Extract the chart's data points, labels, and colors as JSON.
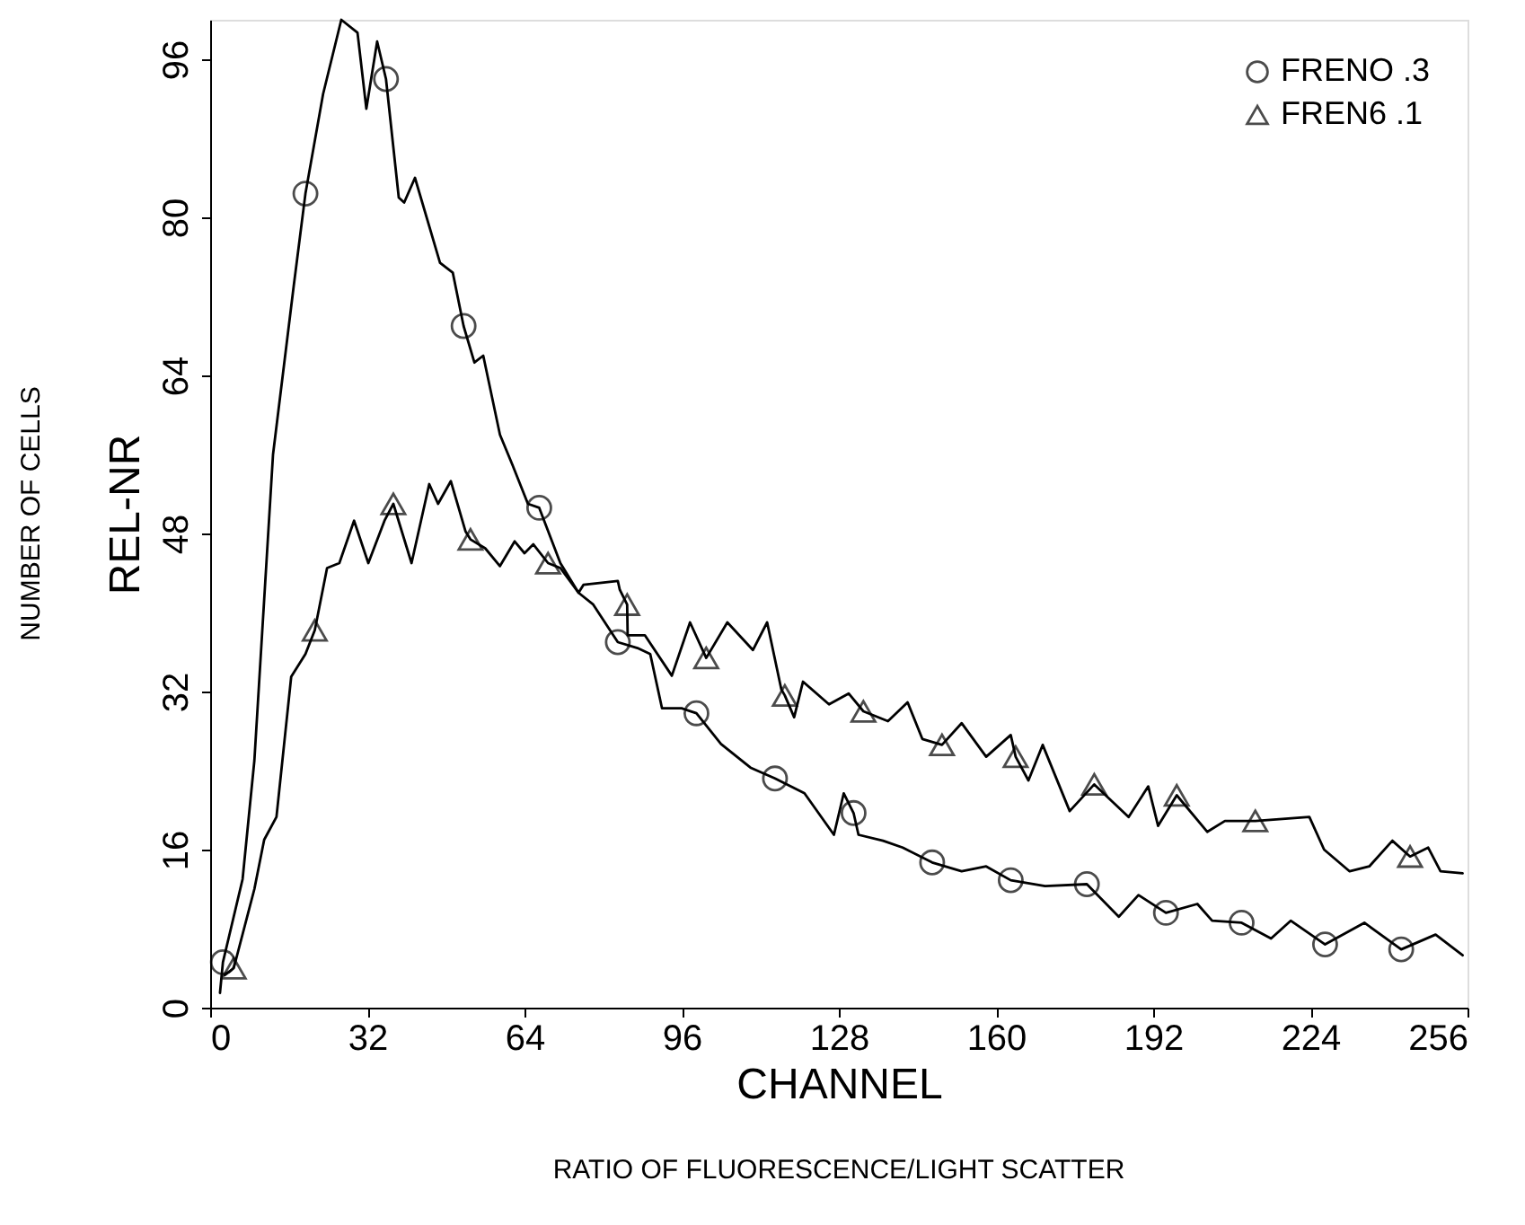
{
  "chart_data": {
    "type": "line",
    "xlabel": "CHANNEL",
    "ylabel": "REL-NR",
    "annotations": [
      "RATIO OF FLUORESCENCE/LIGHT SCATTER",
      "NUMBER OF CELLS"
    ],
    "xlim": [
      0,
      256
    ],
    "xticks": [
      0,
      32,
      64,
      96,
      128,
      160,
      192,
      224,
      256
    ],
    "ylim": [
      0,
      100
    ],
    "yticks": [
      0,
      16,
      32,
      48,
      64,
      80,
      96
    ],
    "grid": false,
    "legend": "top right",
    "series": [
      {
        "color": "#000000",
        "x": [
          2,
          2.6,
          6.6,
          9,
          12.8,
          17,
          19.4,
          23,
          26.7,
          30,
          31.8,
          34,
          35.8,
          38.4,
          39.5,
          41.7,
          46.8,
          49.4,
          51.6,
          53.8,
          55.6,
          59,
          61.5,
          64.7,
          67,
          71.3,
          75,
          78,
          83,
          87,
          89.6,
          92,
          96,
          99,
          104,
          110,
          115,
          121,
          127,
          129,
          131,
          132,
          137,
          141,
          147,
          153,
          158,
          163,
          170,
          178.5,
          185,
          189,
          194.6,
          201,
          204,
          210,
          216,
          220,
          227,
          235,
          242.5,
          249.5,
          255
        ],
        "values": [
          1.5,
          4.6,
          13,
          25,
          56,
          73,
          82.4,
          92.5,
          100,
          98.7,
          91,
          97.8,
          94,
          82,
          81.5,
          84,
          75.4,
          74.4,
          69,
          65.3,
          66,
          58,
          55,
          51,
          50.6,
          45,
          42,
          40.8,
          37,
          36.4,
          35.8,
          30.3,
          30.3,
          29.8,
          26.7,
          24.3,
          23.2,
          21.7,
          17.5,
          21.7,
          19.7,
          17.5,
          16.9,
          16.2,
          14.7,
          13.8,
          14.3,
          12.9,
          12.3,
          12.5,
          9.2,
          11.4,
          9.6,
          10.5,
          8.8,
          8.6,
          7,
          8.8,
          6.4,
          8.6,
          5.9,
          7.4,
          5.3
        ]
      },
      {
        "type": "scatter",
        "name": "FRENO .3",
        "color": "#000000",
        "marker": "circle",
        "x": [
          2.6,
          19.4,
          35.8,
          51.6,
          67,
          83,
          99,
          115,
          131,
          147,
          163,
          178.5,
          194.6,
          210,
          227,
          242.5
        ],
        "values": [
          4.6,
          82.4,
          94,
          69,
          50.6,
          37,
          29.8,
          23.2,
          19.7,
          14.7,
          12.9,
          12.5,
          9.6,
          8.6,
          6.4,
          5.9
        ]
      },
      {
        "color": "#000000",
        "x": [
          3,
          4.8,
          9,
          11,
          13.5,
          16.5,
          19.4,
          21.3,
          23.8,
          26.3,
          29.3,
          32.2,
          35.5,
          37.3,
          41,
          44.6,
          46.4,
          49,
          52,
          53,
          56,
          59,
          62,
          64,
          65.8,
          68.8,
          71.3,
          75,
          76,
          83,
          83.4,
          84.9,
          85,
          88.5,
          94,
          97.7,
          101,
          105.3,
          110.5,
          113.4,
          116.3,
          117,
          118.9,
          120.7,
          126,
          130,
          133,
          138,
          142,
          145,
          149,
          153,
          158,
          163,
          164,
          166.6,
          169.5,
          175,
          180,
          187,
          191,
          193,
          196.8,
          203,
          206.6,
          212.8,
          223.8,
          226.8,
          232,
          236,
          240.7,
          244.3,
          248,
          250.5,
          255
        ],
        "values": [
          3.3,
          4,
          12,
          17,
          19.3,
          33.5,
          35.8,
          38.2,
          44.5,
          45,
          49.3,
          45,
          49.3,
          51,
          45,
          53,
          51,
          53.3,
          48.2,
          47.4,
          46.5,
          44.7,
          47.2,
          46,
          46.9,
          45,
          44.5,
          42,
          42.8,
          43.2,
          42.3,
          40.8,
          37.7,
          37.7,
          33.6,
          39,
          35.4,
          39,
          36.2,
          39,
          32.2,
          31.6,
          29.4,
          33,
          30.7,
          31.8,
          30,
          29,
          30.9,
          27.2,
          26.6,
          28.8,
          25.4,
          27.6,
          25.4,
          23,
          26.6,
          19.9,
          22.6,
          19.3,
          22.4,
          18.4,
          21.5,
          17.8,
          18.9,
          18.9,
          19.3,
          16,
          13.8,
          14.3,
          16.9,
          15.3,
          16.2,
          13.8,
          13.6
        ]
      },
      {
        "type": "scatter",
        "name": "FREN6 .1",
        "color": "#000000",
        "marker": "triangle",
        "x": [
          4.8,
          21.3,
          37.3,
          53,
          68.8,
          84.9,
          101,
          117,
          133,
          149,
          164,
          180,
          196.8,
          212.8,
          244.3
        ],
        "values": [
          4,
          38.2,
          51,
          47.4,
          45,
          40.8,
          35.4,
          31.6,
          30,
          26.6,
          25.4,
          22.6,
          21.5,
          18.9,
          15.3
        ]
      }
    ]
  }
}
